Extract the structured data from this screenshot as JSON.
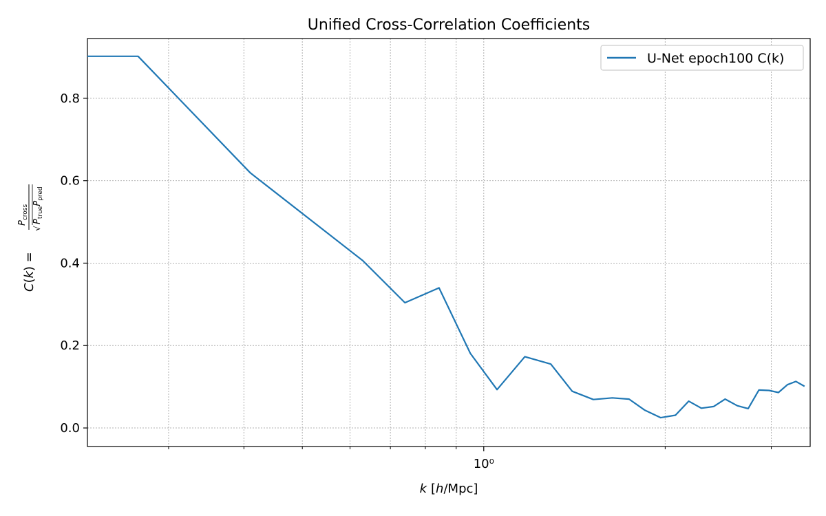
{
  "chart_data": {
    "type": "line",
    "title": "Unified Cross-Correlation Coefficients",
    "xlabel_var": "k",
    "xlabel_unit": "[h/Mpc]",
    "ylabel": "C(k) = P_cross / √(P_true P_pred)",
    "x_scale": "log",
    "xlim": [
      0.22,
      3.48
    ],
    "ylim": [
      -0.045,
      0.945
    ],
    "grid": true,
    "legend_position": "upper right",
    "x_major_ticks": [
      {
        "value": 1.0,
        "label": "10⁰"
      }
    ],
    "x_minor_ticks": [
      0.3,
      0.4,
      0.5,
      0.6,
      0.7,
      0.8,
      0.9,
      2,
      3
    ],
    "y_ticks": [
      {
        "value": 0.0,
        "label": "0.0"
      },
      {
        "value": 0.2,
        "label": "0.2"
      },
      {
        "value": 0.4,
        "label": "0.4"
      },
      {
        "value": 0.6,
        "label": "0.6"
      },
      {
        "value": 0.8,
        "label": "0.8"
      }
    ],
    "series": [
      {
        "name": "U-Net epoch100 C(k)",
        "color": "#1f77b4",
        "points": [
          [
            0.22,
            0.902
          ],
          [
            0.267,
            0.902
          ],
          [
            0.41,
            0.619
          ],
          [
            0.63,
            0.406
          ],
          [
            0.74,
            0.304
          ],
          [
            0.843,
            0.34
          ],
          [
            0.95,
            0.181
          ],
          [
            1.052,
            0.093
          ],
          [
            1.17,
            0.173
          ],
          [
            1.292,
            0.155
          ],
          [
            1.402,
            0.089
          ],
          [
            1.52,
            0.069
          ],
          [
            1.634,
            0.073
          ],
          [
            1.742,
            0.07
          ],
          [
            1.851,
            0.043
          ],
          [
            1.966,
            0.025
          ],
          [
            2.08,
            0.031
          ],
          [
            2.188,
            0.065
          ],
          [
            2.296,
            0.048
          ],
          [
            2.406,
            0.052
          ],
          [
            2.515,
            0.07
          ],
          [
            2.634,
            0.054
          ],
          [
            2.746,
            0.047
          ],
          [
            2.861,
            0.092
          ],
          [
            2.974,
            0.091
          ],
          [
            3.083,
            0.086
          ],
          [
            3.19,
            0.105
          ],
          [
            3.296,
            0.113
          ],
          [
            3.406,
            0.101
          ]
        ]
      }
    ]
  }
}
